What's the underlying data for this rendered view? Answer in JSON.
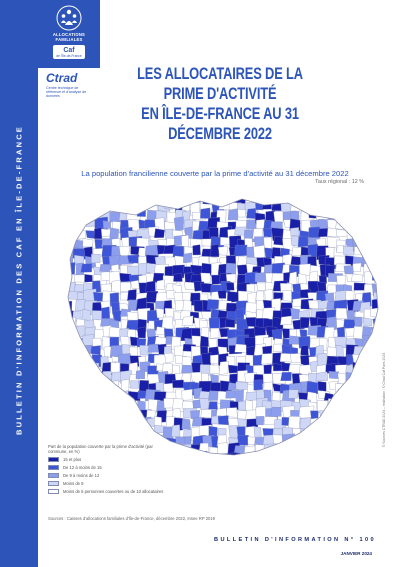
{
  "side_band_text": "BULLETIN D'INFORMATION DES CAF EN ÎLE-DE-FRANCE",
  "logo": {
    "line1": "ALLOCATIONS",
    "line2": "FAMILIALES",
    "caf_word": "Caf",
    "caf_sub": "de l'Île-de-France"
  },
  "ctrad": {
    "name": "Ctrad",
    "subtitle": "Centre technique de référence et d'analyse de données"
  },
  "title": {
    "line1": "LES ALLOCATAIRES DE LA PRIME D'ACTIVITÉ",
    "line2": "EN ÎLE-DE-FRANCE AU 31 DÉCEMBRE 2022"
  },
  "map": {
    "subtitle": "La population francilienne couverte par la prime d'activité au 31 décembre 2022",
    "regional_rate": "Taux régional : 12 %",
    "credit": "© Sources CTRAD 2024 – réalisation : © Ctrad Caf Paris 2024"
  },
  "legend": {
    "title": "Part de la population couverte par la prime d'activité (par commune, en %)",
    "items": [
      {
        "label": "15 et plus",
        "color": "#1a1fa8"
      },
      {
        "label": "De 12 à moins de 15",
        "color": "#3e55d8"
      },
      {
        "label": "De 9 à moins de 12",
        "color": "#8c9eec"
      },
      {
        "label": "Moins de 9",
        "color": "#cfd7f7"
      },
      {
        "label": "Moins de 5 personnes couvertes ou de 10 allocataires",
        "color": "#ffffff"
      }
    ]
  },
  "sources": "Sources : Caisses d'allocations familiales d'Île-de-France, décembre 2022, Insee RP 2019",
  "bulletin": "BULLETIN D'INFORMATION N° 100",
  "date": "JANVIER 2024"
}
